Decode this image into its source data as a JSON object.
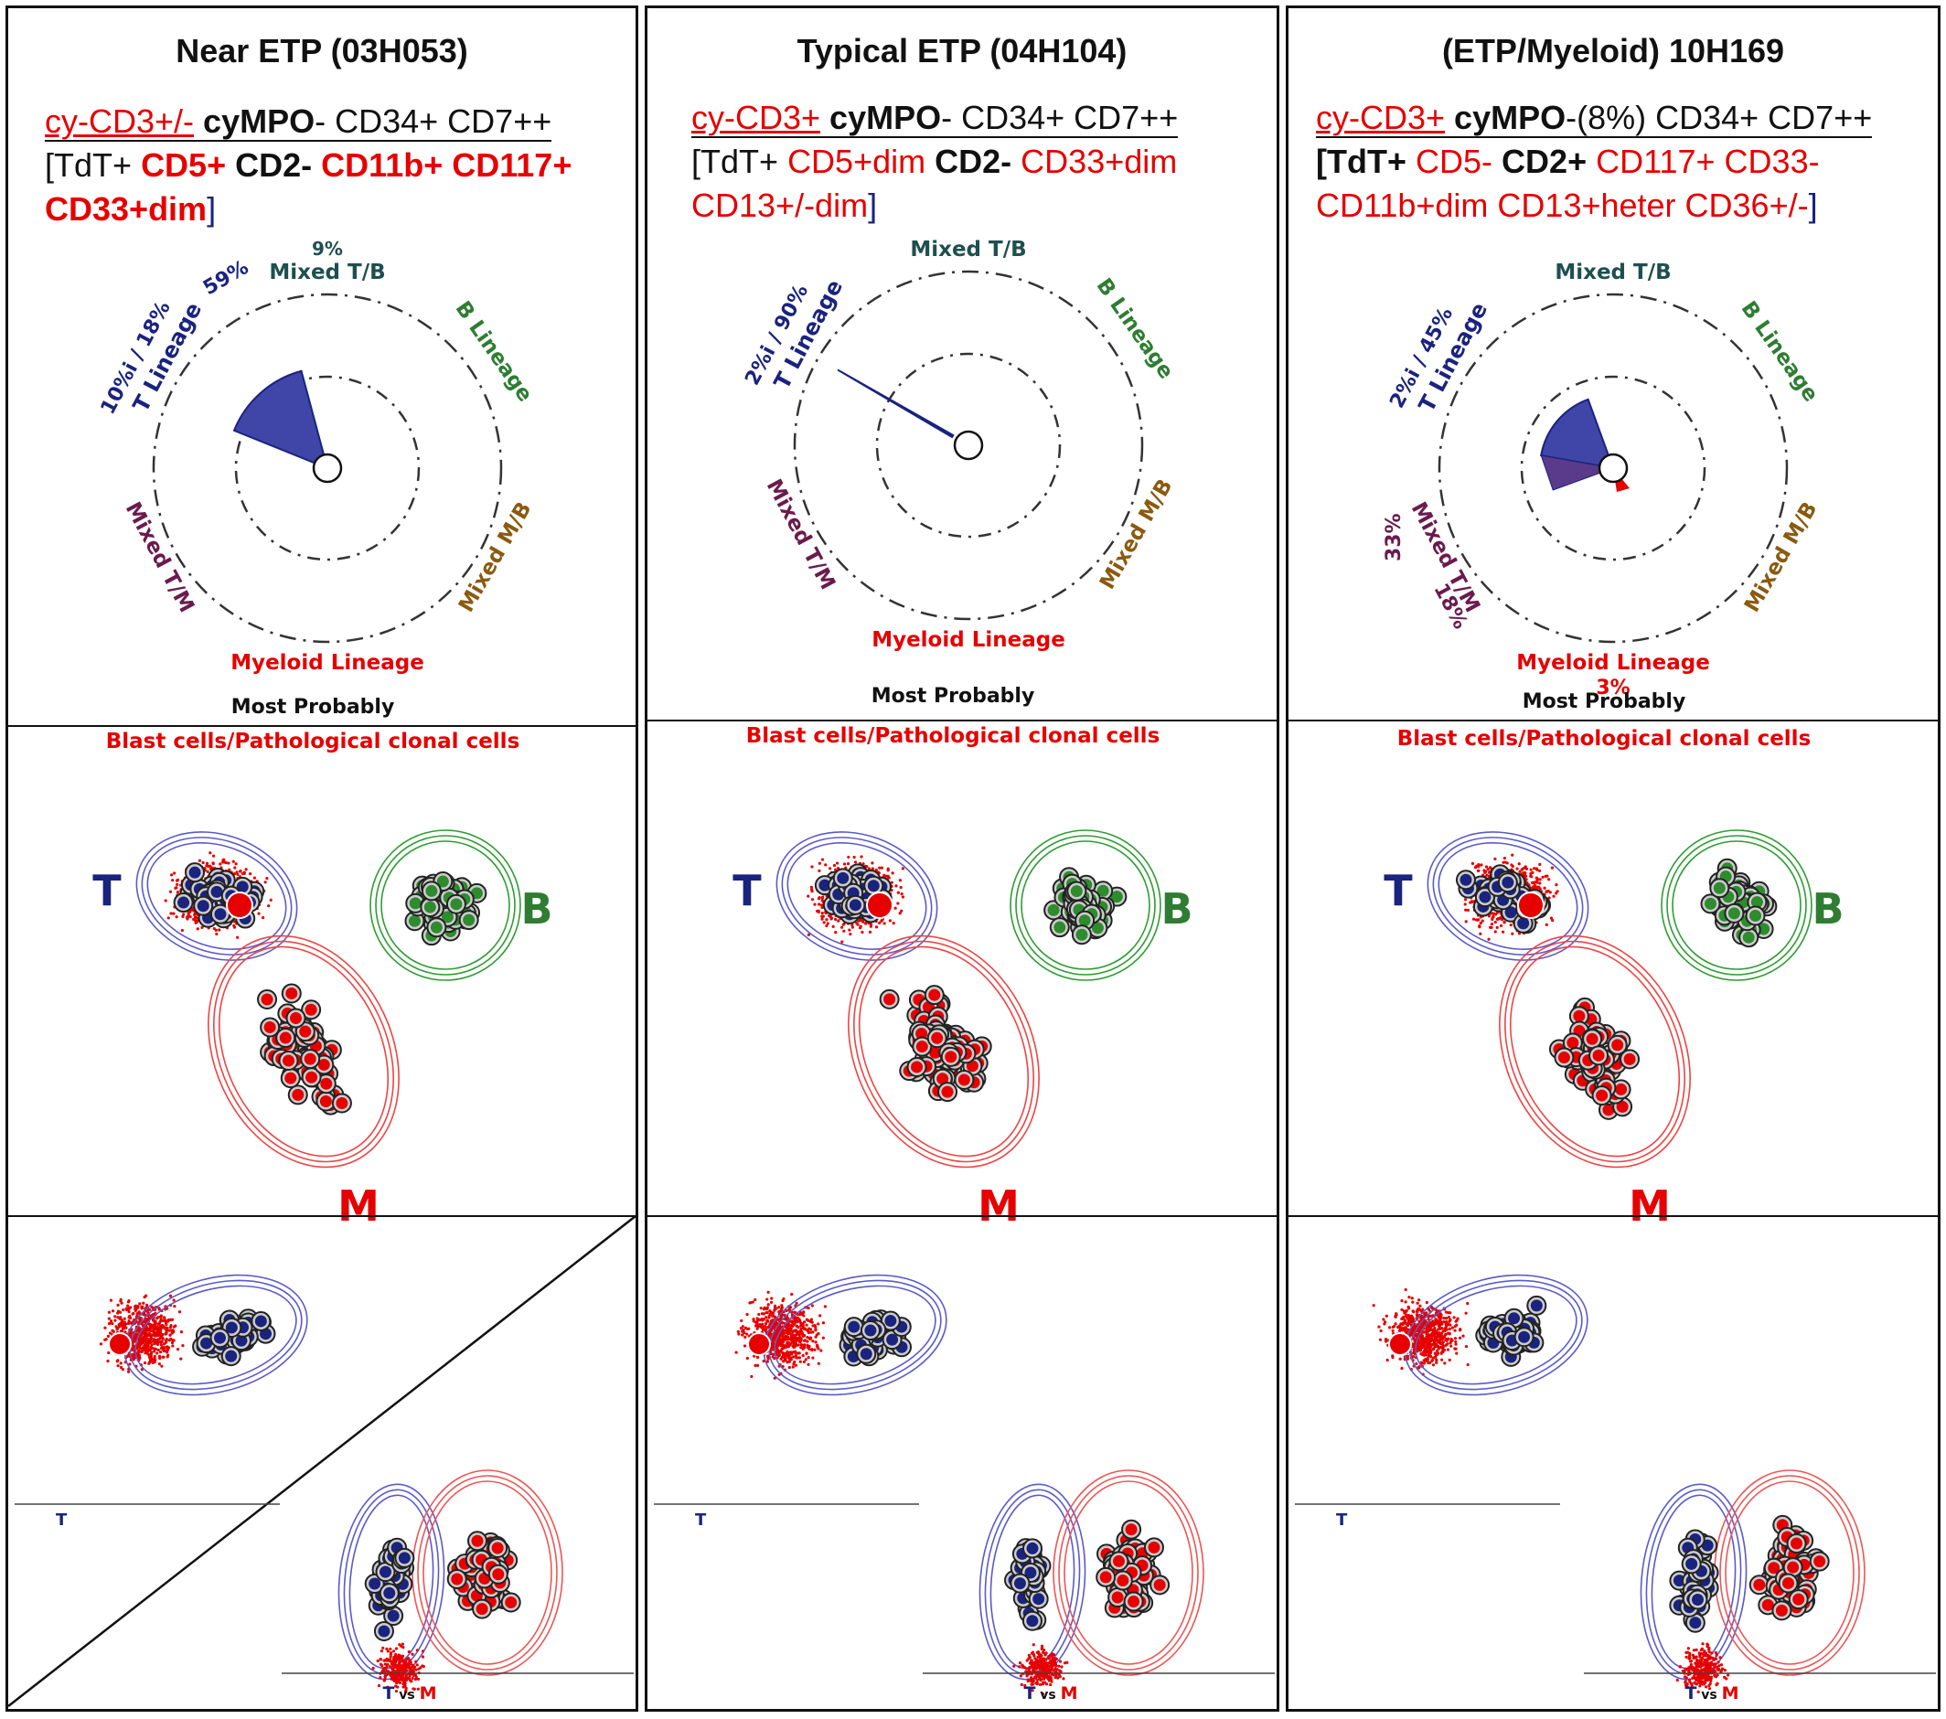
{
  "panels": [
    {
      "title": "Near ETP (03H053)",
      "pheno": {
        "cy": "cy-CD3+/-",
        "mpo": "cyMPO",
        "mpo_suffix": "-",
        "rest1": "CD34+ CD7++",
        "l2a": "[",
        "l2b": "TdT+",
        "l2c": "CD5+",
        "l2d": "CD2-",
        "l2e": "CD11b+",
        "l2f": "CD117+",
        "l3a": "CD33+dim",
        "l3b": "]"
      },
      "radar": {
        "mixed_tb_pct": "9%",
        "t_pct": "10%i / 18%",
        "t_pct2": "59%",
        "mixed_tm_pct": "",
        "mixed_tm_pct2": "",
        "myeloid_pct": ""
      },
      "values": {
        "t_lineage": 59,
        "mixed_tb": 9,
        "myeloid": 0
      }
    },
    {
      "title": "Typical ETP (04H104)",
      "pheno": {
        "cy": "cy-CD3+",
        "mpo": "cyMPO",
        "mpo_suffix": "-",
        "rest1": "CD34+ CD7++",
        "l2a": "[",
        "l2b": "TdT+",
        "l2c": "CD5+dim",
        "l2d": "CD2-",
        "l2e": "CD33+dim",
        "l2f": "",
        "l3a": "CD13+/-dim",
        "l3b": "]"
      },
      "radar": {
        "mixed_tb_pct": "",
        "t_pct": "2%i / 90%",
        "t_pct2": "",
        "mixed_tm_pct": "",
        "mixed_tm_pct2": "",
        "myeloid_pct": ""
      },
      "values": {
        "t_lineage": 90,
        "mixed_tb": 0,
        "myeloid": 0
      }
    },
    {
      "title": "(ETP/Myeloid) 10H169",
      "pheno": {
        "cy": "cy-CD3+",
        "mpo": "cyMPO",
        "mpo_suffix": "-(8%)",
        "rest1": "CD34+ CD7++",
        "l2a": "[",
        "l2b": "TdT+",
        "l2c": "CD5-",
        "l2d": "CD2+",
        "l2e": "CD117+",
        "l2f": "CD33-",
        "l3a": "CD11b+dim CD13+heter CD36+/-",
        "l3b": "]"
      },
      "radar": {
        "mixed_tb_pct": "",
        "t_pct": "2%i / 45%",
        "t_pct2": "",
        "mixed_tm_pct": "33%",
        "mixed_tm_pct2": "18%",
        "myeloid_pct": "3%"
      },
      "values": {
        "t_lineage": 45,
        "mixed_tm": 33,
        "mixed_tm2": 18,
        "myeloid": 3
      }
    }
  ],
  "labels": {
    "mixed_tb": "Mixed T/B",
    "b_lineage": "B Lineage",
    "mixed_mb": "Mixed M/B",
    "myeloid": "Myeloid Lineage",
    "mixed_tm": "Mixed T/M",
    "t_lineage": "T Lineage",
    "most_probably": "Most Probably",
    "blast": "Blast cells/Pathological clonal cells",
    "T": "T",
    "B": "B",
    "M": "M",
    "t_small": "T",
    "vs": "vs",
    "m_small": "M"
  },
  "colors": {
    "t": "#1a237e",
    "b": "#2e7d32",
    "m": "#e60000",
    "mixed_tm": "#6a1b4d",
    "mixed_mb": "#8a5a10",
    "mixed_tb": "#1f4f4f"
  }
}
